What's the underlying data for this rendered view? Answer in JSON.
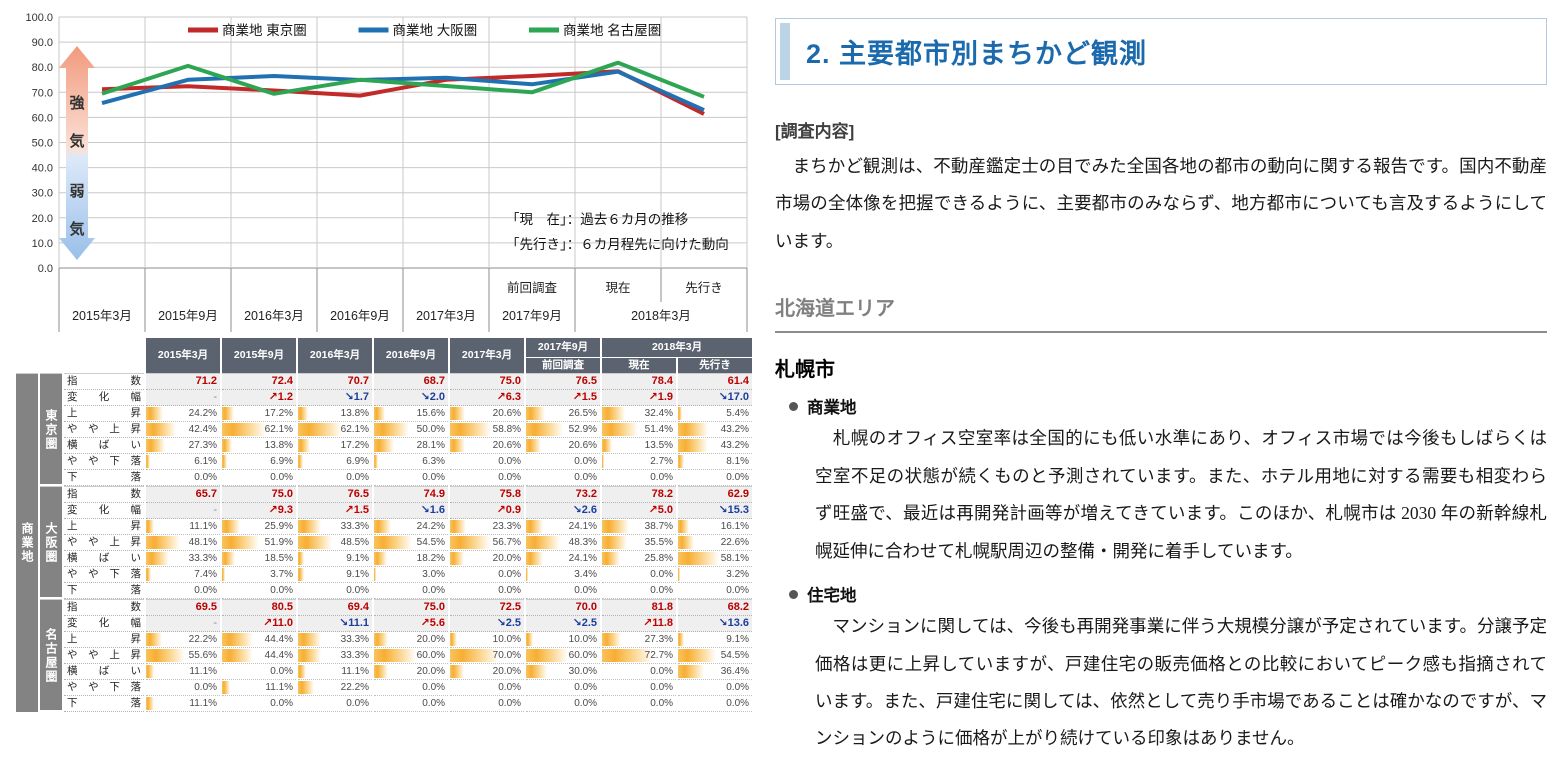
{
  "chart_data": {
    "type": "line",
    "title": "",
    "ylim": [
      0,
      100
    ],
    "ytick_step": 10,
    "grid": true,
    "legend_position": "top",
    "x": [
      "2015年3月",
      "2015年9月",
      "2016年3月",
      "2016年9月",
      "2017年3月",
      "2017年9月",
      "2018年3月 現在",
      "2018年3月 先行き"
    ],
    "series": [
      {
        "name": "商業地 東京圏",
        "color": "#c22a2a",
        "values": [
          71.2,
          72.4,
          70.7,
          68.7,
          75.0,
          76.5,
          78.4,
          61.4
        ]
      },
      {
        "name": "商業地 大阪圏",
        "color": "#2171b2",
        "values": [
          65.7,
          75.0,
          76.5,
          74.9,
          75.8,
          73.2,
          78.2,
          62.9
        ]
      },
      {
        "name": "商業地 名古屋圏",
        "color": "#2ea552",
        "values": [
          69.5,
          80.5,
          69.4,
          75.0,
          72.5,
          70.0,
          81.8,
          68.2
        ]
      }
    ],
    "x_axis": {
      "date_labels": [
        "2015年3月",
        "2015年9月",
        "2016年3月",
        "2016年9月",
        "2017年3月",
        "2017年9月",
        "2018年3月"
      ],
      "sub_labels": [
        "前回調査",
        "現在",
        "先行き"
      ]
    },
    "gauge": {
      "top": "強気",
      "bottom": "弱気"
    },
    "annotations": [
      "「現　在」：過去６カ月の推移",
      "「先行き」：６カ月程先に向けた動向"
    ]
  },
  "table": {
    "corner_label": "商業地",
    "col_headers": [
      "2015年3月",
      "2015年9月",
      "2016年3月",
      "2016年9月",
      "2017年3月",
      "2017年9月",
      "2018年3月"
    ],
    "sub_prev": "前回調査",
    "sub_now": "現在",
    "sub_future": "先行き",
    "metric_labels": [
      "指 数",
      "変 化 幅",
      "上 昇",
      "や や 上 昇",
      "横 ば い",
      "や や 下 落",
      "下 落"
    ],
    "regions": [
      {
        "name": "東京圏",
        "index": [
          71.2,
          72.4,
          70.7,
          68.7,
          75.0,
          76.5,
          78.4,
          61.4
        ],
        "change": [
          "-",
          "+1.2",
          "-1.7",
          "-2.0",
          "+6.3",
          "+1.5",
          "+1.9",
          "-17.0"
        ],
        "pct_rows": [
          [
            24.2,
            17.2,
            13.8,
            15.6,
            20.6,
            26.5,
            32.4,
            5.4
          ],
          [
            42.4,
            62.1,
            62.1,
            50.0,
            58.8,
            52.9,
            51.4,
            43.2
          ],
          [
            27.3,
            13.8,
            17.2,
            28.1,
            20.6,
            20.6,
            13.5,
            43.2
          ],
          [
            6.1,
            6.9,
            6.9,
            6.3,
            0.0,
            0.0,
            2.7,
            8.1
          ],
          [
            0.0,
            0.0,
            0.0,
            0.0,
            0.0,
            0.0,
            0.0,
            0.0
          ]
        ]
      },
      {
        "name": "大阪圏",
        "index": [
          65.7,
          75.0,
          76.5,
          74.9,
          75.8,
          73.2,
          78.2,
          62.9
        ],
        "change": [
          "-",
          "+9.3",
          "+1.5",
          "-1.6",
          "+0.9",
          "-2.6",
          "+5.0",
          "-15.3"
        ],
        "pct_rows": [
          [
            11.1,
            25.9,
            33.3,
            24.2,
            23.3,
            24.1,
            38.7,
            16.1
          ],
          [
            48.1,
            51.9,
            48.5,
            54.5,
            56.7,
            48.3,
            35.5,
            22.6
          ],
          [
            33.3,
            18.5,
            9.1,
            18.2,
            20.0,
            24.1,
            25.8,
            58.1
          ],
          [
            7.4,
            3.7,
            9.1,
            3.0,
            0.0,
            3.4,
            0.0,
            3.2
          ],
          [
            0.0,
            0.0,
            0.0,
            0.0,
            0.0,
            0.0,
            0.0,
            0.0
          ]
        ]
      },
      {
        "name": "名古屋圏",
        "index": [
          69.5,
          80.5,
          69.4,
          75.0,
          72.5,
          70.0,
          81.8,
          68.2
        ],
        "change": [
          "-",
          "+11.0",
          "-11.1",
          "+5.6",
          "-2.5",
          "-2.5",
          "+11.8",
          "-13.6"
        ],
        "pct_rows": [
          [
            22.2,
            44.4,
            33.3,
            20.0,
            10.0,
            10.0,
            27.3,
            9.1
          ],
          [
            55.6,
            44.4,
            33.3,
            60.0,
            70.0,
            60.0,
            72.7,
            54.5
          ],
          [
            11.1,
            0.0,
            11.1,
            20.0,
            20.0,
            30.0,
            0.0,
            36.4
          ],
          [
            0.0,
            11.1,
            22.2,
            0.0,
            0.0,
            0.0,
            0.0,
            0.0
          ],
          [
            11.1,
            0.0,
            0.0,
            0.0,
            0.0,
            0.0,
            0.0,
            0.0
          ]
        ]
      }
    ]
  },
  "article": {
    "title": "2. 主要都市別まちかど観測",
    "survey_heading": "[調査内容]",
    "survey_body": "　まちかど観測は、不動産鑑定士の目でみた全国各地の都市の動向に関する報告です。国内不動産市場の全体像を把握できるように、主要都市のみならず、地方都市についても言及するようにしています。",
    "area_heading": "北海道エリア",
    "city_heading": "札幌市",
    "sections": [
      {
        "label": "商業地",
        "body": "　札幌のオフィス空室率は全国的にも低い水準にあり、オフィス市場では今後もしばらくは空室不足の状態が続くものと予測されています。また、ホテル用地に対する需要も相変わらず旺盛で、最近は再開発計画等が増えてきています。このほか、札幌市は 2030 年の新幹線札幌延伸に合わせて札幌駅周辺の整備・開発に着手しています。"
      },
      {
        "label": "住宅地",
        "body": "　マンションに関しては、今後も再開発事業に伴う大規模分譲が予定されています。分譲予定価格は更に上昇していますが、戸建住宅の販売価格との比較においてピーク感も指摘されています。また、戸建住宅に関しては、依然として売り手市場であることは確かなのですが、マンションのように価格が上がり続けている印象はありません。"
      }
    ]
  }
}
